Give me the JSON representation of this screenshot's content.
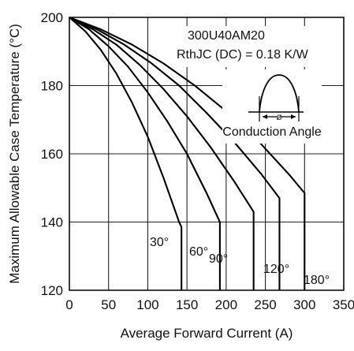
{
  "chart_data": {
    "type": "line",
    "title": "",
    "xlabel": "Average Forward Current (A)",
    "ylabel": "Maximum Allowable Case Temperature (°C)",
    "xlim": [
      0,
      350
    ],
    "ylim": [
      120,
      200
    ],
    "xticks": [
      0,
      50,
      100,
      150,
      200,
      250,
      300,
      350
    ],
    "yticks": [
      120,
      140,
      160,
      180,
      200
    ],
    "grid": true,
    "annotations": {
      "part_number": "300U40AM20",
      "thermal_resistance": "RthJC (DC) = 0.18 K/W",
      "inset_label": "Conduction Angle",
      "inset_symbol": "ø"
    },
    "series": [
      {
        "name": "30°",
        "x": [
          0,
          20,
          40,
          60,
          80,
          100,
          120,
          140,
          143,
          143
        ],
        "y": [
          200,
          196,
          190.5,
          183.5,
          175,
          165,
          153,
          140,
          138.5,
          120
        ]
      },
      {
        "name": "60°",
        "x": [
          0,
          25,
          50,
          75,
          100,
          125,
          150,
          175,
          192,
          192
        ],
        "y": [
          200,
          196.5,
          191.5,
          185.5,
          178,
          169.5,
          160,
          148.5,
          140,
          120
        ]
      },
      {
        "name": "90°",
        "x": [
          0,
          30,
          60,
          90,
          120,
          150,
          180,
          210,
          235,
          235
        ],
        "y": [
          200,
          196.5,
          192,
          186,
          179,
          171,
          162,
          152,
          143,
          120
        ]
      },
      {
        "name": "120°",
        "x": [
          0,
          35,
          70,
          105,
          140,
          175,
          210,
          245,
          268,
          268
        ],
        "y": [
          200,
          196.5,
          192,
          186.5,
          180,
          172,
          163.5,
          154,
          147,
          120
        ]
      },
      {
        "name": "180°",
        "x": [
          0,
          40,
          80,
          120,
          160,
          200,
          240,
          280,
          300,
          300
        ],
        "y": [
          200,
          196.5,
          192,
          186.5,
          180,
          172.5,
          164,
          154,
          148.5,
          120
        ]
      }
    ]
  }
}
